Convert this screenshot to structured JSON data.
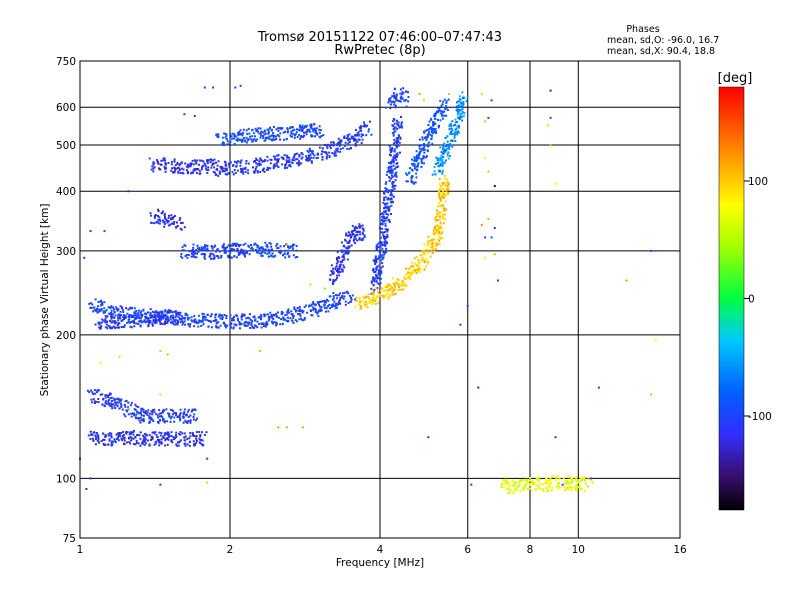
{
  "chart_data": {
    "type": "scatter",
    "title": "Tromsø 20151122 07:46:00–07:47:43",
    "subtitle": "RwPretec (8p)",
    "xlabel": "Frequency [MHz]",
    "ylabel": "Stationary phase Virtual Height [km]",
    "x_scale": "log",
    "y_scale": "log",
    "xlim": [
      1,
      16
    ],
    "ylim": [
      75,
      750
    ],
    "x_ticks": [
      1,
      2,
      4,
      6,
      8,
      10,
      16
    ],
    "x_tick_labels": [
      "1",
      "2",
      "4",
      "6",
      "8",
      "10",
      "16"
    ],
    "y_ticks": [
      75,
      100,
      200,
      300,
      400,
      500,
      600,
      750
    ],
    "y_tick_labels": [
      "75",
      "100",
      "200",
      "300",
      "400",
      "500",
      "600",
      "750"
    ],
    "grid": true,
    "stats_header": "Phases",
    "stats_o": "mean, sd,O: -96.0, 16.7",
    "stats_x": "mean, sd,X:  90.4, 18.8",
    "colorbar": {
      "label": "[deg]",
      "range": [
        -180,
        180
      ],
      "ticks": [
        100,
        0,
        -100
      ],
      "tick_labels": [
        "100",
        "0",
        "-100"
      ]
    },
    "traces": [
      {
        "phase": -100,
        "points": [
          [
            1.05,
            232
          ],
          [
            1.12,
            226
          ],
          [
            1.2,
            222
          ],
          [
            1.3,
            220
          ],
          [
            1.45,
            218
          ],
          [
            1.6,
            216
          ],
          [
            1.8,
            214
          ],
          [
            2.0,
            213
          ],
          [
            2.3,
            214
          ],
          [
            2.6,
            218
          ],
          [
            2.9,
            224
          ],
          [
            3.1,
            230
          ],
          [
            3.3,
            238
          ],
          [
            3.5,
            240
          ]
        ]
      },
      {
        "phase": -110,
        "points": [
          [
            1.08,
            212
          ],
          [
            1.2,
            214
          ],
          [
            1.4,
            216
          ],
          [
            1.6,
            219
          ]
        ]
      },
      {
        "phase": -115,
        "points": [
          [
            1.05,
            122
          ],
          [
            1.15,
            121
          ],
          [
            1.25,
            122
          ],
          [
            1.35,
            121
          ],
          [
            1.5,
            121
          ],
          [
            1.65,
            121
          ],
          [
            1.78,
            121
          ]
        ]
      },
      {
        "phase": -105,
        "points": [
          [
            1.05,
            150
          ],
          [
            1.15,
            145
          ],
          [
            1.25,
            140
          ],
          [
            1.35,
            135
          ],
          [
            1.5,
            135
          ],
          [
            1.7,
            135
          ]
        ]
      },
      {
        "phase": -115,
        "points": [
          [
            1.4,
            455
          ],
          [
            1.5,
            452
          ],
          [
            1.6,
            450
          ],
          [
            1.75,
            450
          ],
          [
            1.9,
            452
          ]
        ]
      },
      {
        "phase": -95,
        "points": [
          [
            1.9,
            515
          ],
          [
            2.1,
            520
          ],
          [
            2.3,
            525
          ],
          [
            2.6,
            530
          ],
          [
            2.9,
            535
          ],
          [
            3.1,
            538
          ]
        ]
      },
      {
        "phase": -110,
        "points": [
          [
            1.9,
            445
          ],
          [
            2.2,
            450
          ],
          [
            2.5,
            460
          ],
          [
            2.8,
            470
          ],
          [
            3.0,
            480
          ],
          [
            3.3,
            495
          ],
          [
            3.6,
            520
          ],
          [
            3.8,
            545
          ]
        ]
      },
      {
        "phase": -100,
        "points": [
          [
            1.6,
            300
          ],
          [
            1.8,
            298
          ],
          [
            2.0,
            300
          ],
          [
            2.3,
            302
          ],
          [
            2.5,
            300
          ],
          [
            2.7,
            300
          ]
        ]
      },
      {
        "phase": -115,
        "points": [
          [
            1.4,
            355
          ],
          [
            1.5,
            345
          ],
          [
            1.6,
            340
          ]
        ]
      },
      {
        "phase": -115,
        "points": [
          [
            3.2,
            260
          ],
          [
            3.3,
            280
          ],
          [
            3.4,
            300
          ],
          [
            3.5,
            320
          ],
          [
            3.6,
            335
          ],
          [
            3.7,
            320
          ]
        ]
      },
      {
        "phase": -105,
        "points": [
          [
            3.9,
            250
          ],
          [
            4.0,
            290
          ],
          [
            4.1,
            350
          ],
          [
            4.2,
            420
          ],
          [
            4.3,
            500
          ],
          [
            4.35,
            560
          ]
        ]
      },
      {
        "phase": 100,
        "points": [
          [
            3.6,
            232
          ],
          [
            3.8,
            236
          ],
          [
            4.0,
            242
          ],
          [
            4.2,
            250
          ],
          [
            4.5,
            262
          ],
          [
            4.8,
            280
          ],
          [
            5.0,
            300
          ],
          [
            5.2,
            320
          ],
          [
            5.3,
            360
          ],
          [
            5.4,
            420
          ]
        ]
      },
      {
        "phase": -90,
        "points": [
          [
            4.6,
            420
          ],
          [
            4.8,
            470
          ],
          [
            5.0,
            520
          ],
          [
            5.2,
            570
          ],
          [
            5.4,
            610
          ]
        ]
      },
      {
        "phase": -60,
        "points": [
          [
            5.2,
            440
          ],
          [
            5.4,
            480
          ],
          [
            5.6,
            530
          ],
          [
            5.8,
            600
          ],
          [
            5.9,
            630
          ]
        ]
      },
      {
        "phase": -100,
        "points": [
          [
            4.2,
            600
          ],
          [
            4.3,
            630
          ],
          [
            4.4,
            640
          ],
          [
            4.5,
            620
          ]
        ]
      },
      {
        "phase": 70,
        "points": [
          [
            7.0,
            97
          ],
          [
            7.5,
            96
          ],
          [
            8.0,
            98
          ],
          [
            8.5,
            97
          ],
          [
            9.0,
            98
          ],
          [
            10.5,
            97
          ]
        ]
      }
    ],
    "scatter": [
      {
        "x": 1.62,
        "y": 580,
        "phase": -110
      },
      {
        "x": 1.7,
        "y": 575,
        "phase": -115
      },
      {
        "x": 1.78,
        "y": 660,
        "phase": -110
      },
      {
        "x": 1.85,
        "y": 660,
        "phase": -105
      },
      {
        "x": 2.05,
        "y": 660,
        "phase": -100
      },
      {
        "x": 2.1,
        "y": 665,
        "phase": -95
      },
      {
        "x": 1.25,
        "y": 400,
        "phase": -115
      },
      {
        "x": 1.05,
        "y": 330,
        "phase": -110
      },
      {
        "x": 1.12,
        "y": 330,
        "phase": -105
      },
      {
        "x": 1.02,
        "y": 290,
        "phase": -120
      },
      {
        "x": 1.0,
        "y": 110,
        "phase": -110
      },
      {
        "x": 1.05,
        "y": 100,
        "phase": -115
      },
      {
        "x": 1.03,
        "y": 95,
        "phase": -120
      },
      {
        "x": 1.65,
        "y": 450,
        "phase": -100
      },
      {
        "x": 1.1,
        "y": 175,
        "phase": 60
      },
      {
        "x": 1.2,
        "y": 180,
        "phase": 100
      },
      {
        "x": 1.45,
        "y": 185,
        "phase": 105
      },
      {
        "x": 1.5,
        "y": 182,
        "phase": 110
      },
      {
        "x": 1.25,
        "y": 140,
        "phase": 30
      },
      {
        "x": 1.45,
        "y": 150,
        "phase": 50
      },
      {
        "x": 1.8,
        "y": 110,
        "phase": -110
      },
      {
        "x": 1.8,
        "y": 98,
        "phase": 100
      },
      {
        "x": 1.45,
        "y": 97,
        "phase": -110
      },
      {
        "x": 2.3,
        "y": 185,
        "phase": 110
      },
      {
        "x": 2.5,
        "y": 128,
        "phase": 120
      },
      {
        "x": 2.6,
        "y": 128,
        "phase": 115
      },
      {
        "x": 2.8,
        "y": 128,
        "phase": 120
      },
      {
        "x": 2.6,
        "y": 310,
        "phase": 110
      },
      {
        "x": 2.9,
        "y": 255,
        "phase": 100
      },
      {
        "x": 3.1,
        "y": 250,
        "phase": 30
      },
      {
        "x": 4.8,
        "y": 640,
        "phase": 120
      },
      {
        "x": 4.9,
        "y": 620,
        "phase": 100
      },
      {
        "x": 5.5,
        "y": 640,
        "phase": 110
      },
      {
        "x": 5.7,
        "y": 600,
        "phase": -110
      },
      {
        "x": 5.3,
        "y": 410,
        "phase": 100
      },
      {
        "x": 6.0,
        "y": 230,
        "phase": -100
      },
      {
        "x": 5.8,
        "y": 210,
        "phase": -110
      },
      {
        "x": 6.4,
        "y": 640,
        "phase": 40
      },
      {
        "x": 6.5,
        "y": 560,
        "phase": 30
      },
      {
        "x": 6.6,
        "y": 570,
        "phase": -100
      },
      {
        "x": 6.7,
        "y": 620,
        "phase": -105
      },
      {
        "x": 6.5,
        "y": 470,
        "phase": 80
      },
      {
        "x": 6.6,
        "y": 440,
        "phase": 110
      },
      {
        "x": 6.8,
        "y": 410,
        "phase": -160
      },
      {
        "x": 6.6,
        "y": 350,
        "phase": 110
      },
      {
        "x": 6.8,
        "y": 335,
        "phase": -100
      },
      {
        "x": 6.4,
        "y": 340,
        "phase": 130
      },
      {
        "x": 6.5,
        "y": 320,
        "phase": -110
      },
      {
        "x": 6.7,
        "y": 320,
        "phase": -80
      },
      {
        "x": 6.5,
        "y": 290,
        "phase": 80
      },
      {
        "x": 6.8,
        "y": 295,
        "phase": 110
      },
      {
        "x": 6.9,
        "y": 260,
        "phase": -110
      },
      {
        "x": 6.3,
        "y": 155,
        "phase": -130
      },
      {
        "x": 5.0,
        "y": 122,
        "phase": -110
      },
      {
        "x": 6.1,
        "y": 97,
        "phase": -110
      },
      {
        "x": 8.8,
        "y": 650,
        "phase": -140
      },
      {
        "x": 8.8,
        "y": 570,
        "phase": -100
      },
      {
        "x": 8.7,
        "y": 550,
        "phase": 40
      },
      {
        "x": 8.8,
        "y": 500,
        "phase": 110
      },
      {
        "x": 9.0,
        "y": 415,
        "phase": 70
      },
      {
        "x": 9.0,
        "y": 122,
        "phase": -110
      },
      {
        "x": 9.3,
        "y": 97,
        "phase": -110
      },
      {
        "x": 10.6,
        "y": 100,
        "phase": -100
      },
      {
        "x": 11.0,
        "y": 155,
        "phase": -100
      },
      {
        "x": 12.5,
        "y": 260,
        "phase": 120
      },
      {
        "x": 14.0,
        "y": 300,
        "phase": -100
      },
      {
        "x": 14.3,
        "y": 195,
        "phase": 80
      },
      {
        "x": 14.0,
        "y": 150,
        "phase": 110
      }
    ]
  }
}
